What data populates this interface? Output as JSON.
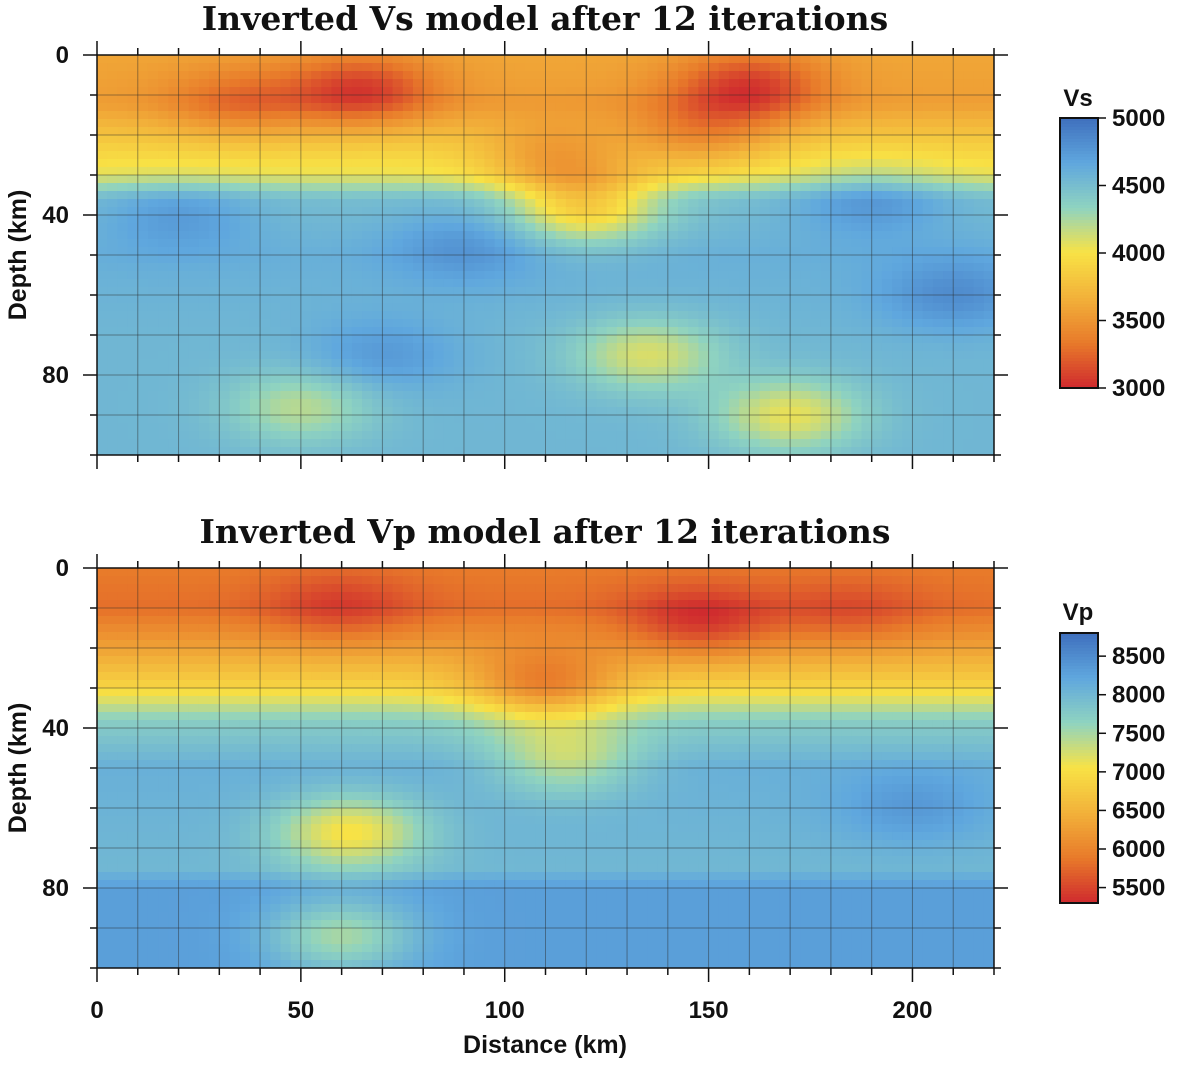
{
  "chart_data": [
    {
      "type": "heatmap",
      "title": "Inverted Vs model after 12 iterations",
      "ylabel": "Depth (km)",
      "xlabel": "",
      "xlim": [
        0,
        220
      ],
      "ylim": [
        0,
        100
      ],
      "y_inverted": true,
      "y_ticks": [
        0,
        40,
        80
      ],
      "grid": true,
      "colorbar": {
        "label": "Vs",
        "ticks": [
          5000,
          4500,
          4000,
          3500,
          3000
        ],
        "range": [
          3000,
          5000
        ],
        "colormap": [
          "#cf2a2e",
          "#e87a2a",
          "#f2b13a",
          "#f8e245",
          "#8fd3c0",
          "#5fa7de",
          "#3f6fbd"
        ]
      },
      "background_profile": [
        {
          "depth": 0,
          "value": 3600
        },
        {
          "depth": 12,
          "value": 3550
        },
        {
          "depth": 22,
          "value": 3850
        },
        {
          "depth": 30,
          "value": 4050
        },
        {
          "depth": 36,
          "value": 4500
        },
        {
          "depth": 50,
          "value": 4600
        },
        {
          "depth": 70,
          "value": 4550
        },
        {
          "depth": 100,
          "value": 4550
        }
      ],
      "anomalies": [
        {
          "x": 65,
          "depth": 9,
          "value": -500
        },
        {
          "x": 35,
          "depth": 12,
          "value": -300
        },
        {
          "x": 160,
          "depth": 8,
          "value": -500
        },
        {
          "x": 148,
          "depth": 20,
          "value": -350
        },
        {
          "x": 120,
          "depth": 38,
          "value": -650
        },
        {
          "x": 112,
          "depth": 26,
          "value": -350
        },
        {
          "x": 135,
          "depth": 75,
          "value": -450
        },
        {
          "x": 170,
          "depth": 90,
          "value": -500
        },
        {
          "x": 50,
          "depth": 88,
          "value": -350
        },
        {
          "x": 90,
          "depth": 48,
          "value": 200
        },
        {
          "x": 190,
          "depth": 36,
          "value": 250
        },
        {
          "x": 210,
          "depth": 60,
          "value": 250
        },
        {
          "x": 70,
          "depth": 75,
          "value": 200
        },
        {
          "x": 20,
          "depth": 40,
          "value": 200
        }
      ]
    },
    {
      "type": "heatmap",
      "title": "Inverted Vp model after 12 iterations",
      "ylabel": "Depth (km)",
      "xlabel": "Distance (km)",
      "xlim": [
        0,
        220
      ],
      "ylim": [
        0,
        100
      ],
      "y_inverted": true,
      "x_ticks": [
        0,
        50,
        100,
        150,
        200
      ],
      "y_ticks": [
        0,
        40,
        80
      ],
      "grid": true,
      "colorbar": {
        "label": "Vp",
        "ticks": [
          8500,
          8000,
          7500,
          7000,
          6500,
          6000,
          5500
        ],
        "range": [
          5300,
          8800
        ],
        "colormap": [
          "#cf2a2e",
          "#e87a2a",
          "#f2b13a",
          "#f8e245",
          "#8fd3c0",
          "#5fa7de",
          "#3f6fbd"
        ]
      },
      "background_profile": [
        {
          "depth": 0,
          "value": 5900
        },
        {
          "depth": 10,
          "value": 5800
        },
        {
          "depth": 20,
          "value": 6300
        },
        {
          "depth": 30,
          "value": 6900
        },
        {
          "depth": 38,
          "value": 7700
        },
        {
          "depth": 50,
          "value": 8100
        },
        {
          "depth": 75,
          "value": 8000
        },
        {
          "depth": 80,
          "value": 8300
        },
        {
          "depth": 100,
          "value": 8300
        }
      ],
      "anomalies": [
        {
          "x": 110,
          "depth": 30,
          "value": -900
        },
        {
          "x": 115,
          "depth": 48,
          "value": -700
        },
        {
          "x": 148,
          "depth": 14,
          "value": -600
        },
        {
          "x": 60,
          "depth": 10,
          "value": -400
        },
        {
          "x": 185,
          "depth": 12,
          "value": -300
        },
        {
          "x": 62,
          "depth": 66,
          "value": -1000
        },
        {
          "x": 60,
          "depth": 92,
          "value": -800
        },
        {
          "x": 200,
          "depth": 60,
          "value": 300
        }
      ]
    }
  ]
}
